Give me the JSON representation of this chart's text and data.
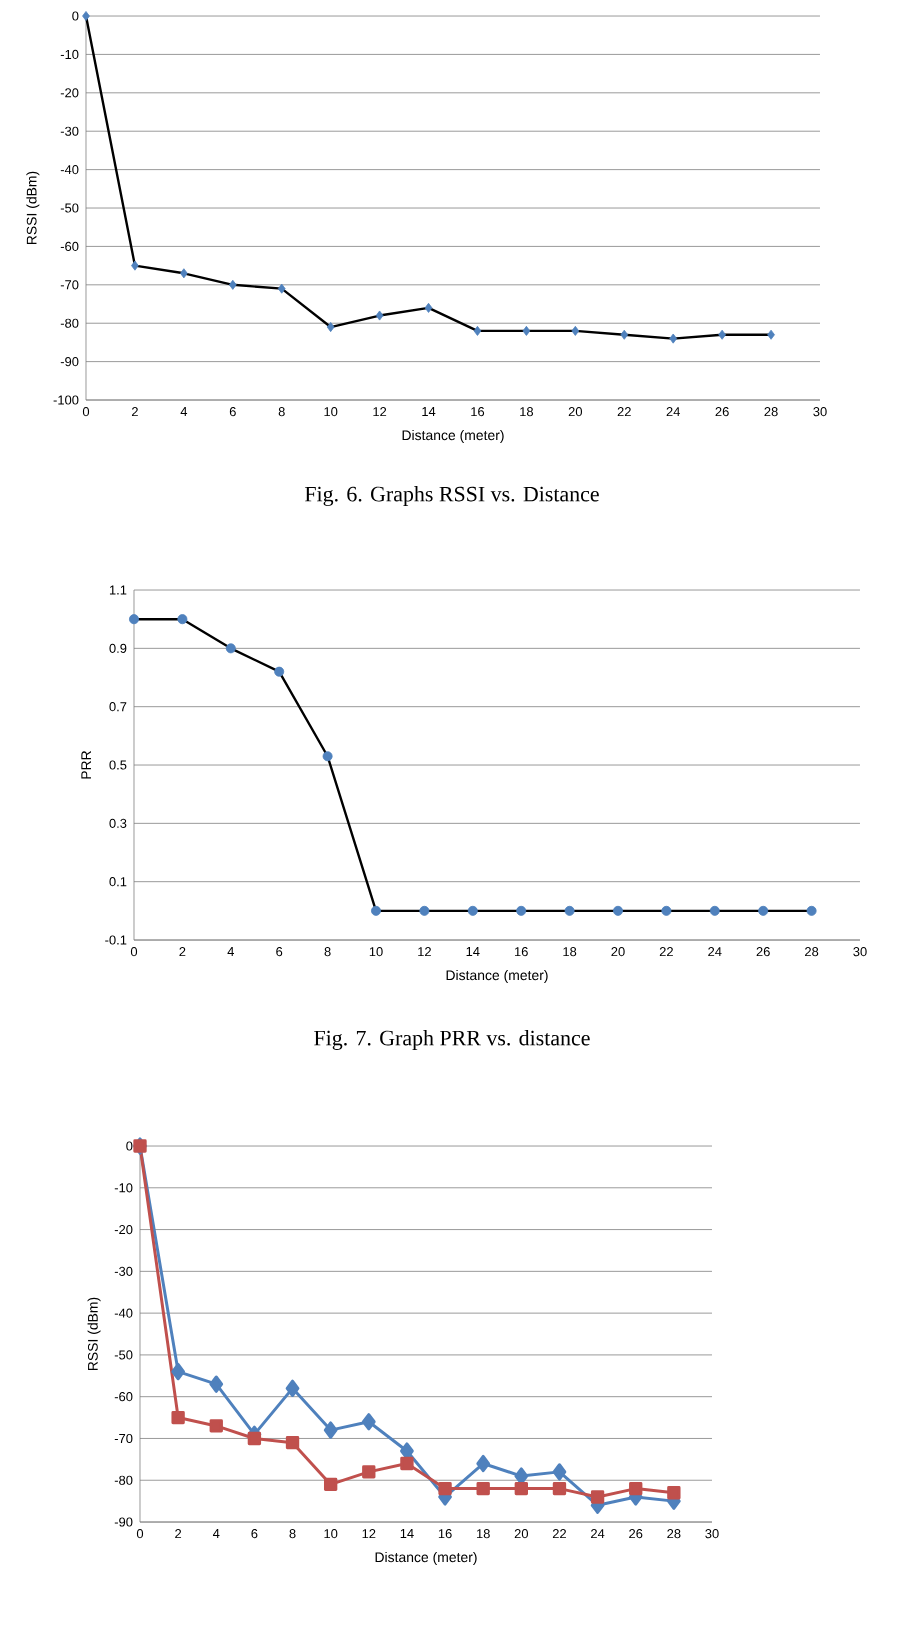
{
  "chart_data": [
    {
      "type": "line",
      "xlabel": "Distance (meter)",
      "ylabel": "RSSI (dBm)",
      "annotations": [
        "Fig. 6.  Graphs RSSI vs. Distance"
      ],
      "x": [
        0,
        2,
        4,
        6,
        8,
        10,
        12,
        14,
        16,
        18,
        20,
        22,
        24,
        26,
        28
      ],
      "xlim": [
        0,
        30
      ],
      "xticks": [
        0,
        2,
        4,
        6,
        8,
        10,
        12,
        14,
        16,
        18,
        20,
        22,
        24,
        26,
        28,
        30
      ],
      "ylim": [
        -100,
        0
      ],
      "yticks": [
        -100,
        -90,
        -80,
        -70,
        -60,
        -50,
        -40,
        -30,
        -20,
        -10,
        0
      ],
      "grid": "y",
      "marker": "diamond",
      "line_style": "solid",
      "series": [
        {
          "color": "#000000",
          "colors": [
            "#4f81bd",
            "#4f81bd",
            "#4f81bd",
            "#4f81bd",
            "#4f81bd",
            "#4f81bd",
            "#4f81bd",
            "#4f81bd",
            "#4f81bd",
            "#4f81bd",
            "#4f81bd",
            "#4f81bd",
            "#4f81bd",
            "#4f81bd",
            "#4f81bd"
          ],
          "values": [
            0,
            -65,
            -67,
            -70,
            -71,
            -81,
            -78,
            -76,
            -82,
            -82,
            -82,
            -83,
            -84,
            -83,
            -83
          ]
        }
      ]
    },
    {
      "type": "line",
      "xlabel": "Distance (meter)",
      "ylabel": "PRR",
      "annotations": [
        "Fig. 7. Graph PRR vs. distance"
      ],
      "x": [
        0,
        2,
        4,
        6,
        8,
        10,
        12,
        14,
        16,
        18,
        20,
        22,
        24,
        26,
        28
      ],
      "xlim": [
        0,
        30
      ],
      "xticks": [
        0,
        2,
        4,
        6,
        8,
        10,
        12,
        14,
        16,
        18,
        20,
        22,
        24,
        26,
        28,
        30
      ],
      "ylim": [
        -0.1,
        1.1
      ],
      "yticks": [
        -0.1,
        0.1,
        0.3,
        0.5,
        0.7,
        0.9,
        1.1
      ],
      "grid": "y",
      "marker": "circle",
      "line_style": "solid",
      "series": [
        {
          "color": "#000000",
          "colors": [
            "#4f81bd",
            "#4f81bd",
            "#4f81bd",
            "#4f81bd",
            "#4f81bd",
            "#4f81bd",
            "#4f81bd",
            "#4f81bd",
            "#4f81bd",
            "#4f81bd",
            "#4f81bd",
            "#4f81bd",
            "#4f81bd",
            "#4f81bd",
            "#4f81bd"
          ],
          "values": [
            1,
            1,
            0.9,
            0.82,
            0.53,
            0,
            0,
            0,
            0,
            0,
            0,
            0,
            0,
            0,
            0
          ]
        }
      ]
    },
    {
      "type": "line",
      "xlabel": "Distance (meter)",
      "ylabel": "RSSI (dBm)",
      "x": [
        0,
        2,
        4,
        6,
        8,
        10,
        12,
        14,
        16,
        18,
        20,
        22,
        24,
        26,
        28
      ],
      "xlim": [
        0,
        30
      ],
      "xticks": [
        0,
        2,
        4,
        6,
        8,
        10,
        12,
        14,
        16,
        18,
        20,
        22,
        24,
        26,
        28,
        30
      ],
      "ylim": [
        -90,
        0
      ],
      "yticks": [
        -90,
        -80,
        -70,
        -60,
        -50,
        -40,
        -30,
        -20,
        -10,
        0
      ],
      "grid": "y",
      "line_style": "solid",
      "series": [
        {
          "color": "#4f81bd",
          "marker": "diamond",
          "values": [
            0,
            -54,
            -57,
            -69,
            -58,
            -68,
            -66,
            -73,
            -84,
            -76,
            -79,
            -78,
            -86,
            -84,
            -85
          ]
        },
        {
          "color": "#c0504d",
          "marker": "square",
          "values": [
            0,
            -65,
            -67,
            -70,
            -71,
            -81,
            -78,
            -76,
            -82,
            -82,
            -82,
            -82,
            -84,
            -82,
            -83
          ]
        }
      ]
    }
  ]
}
